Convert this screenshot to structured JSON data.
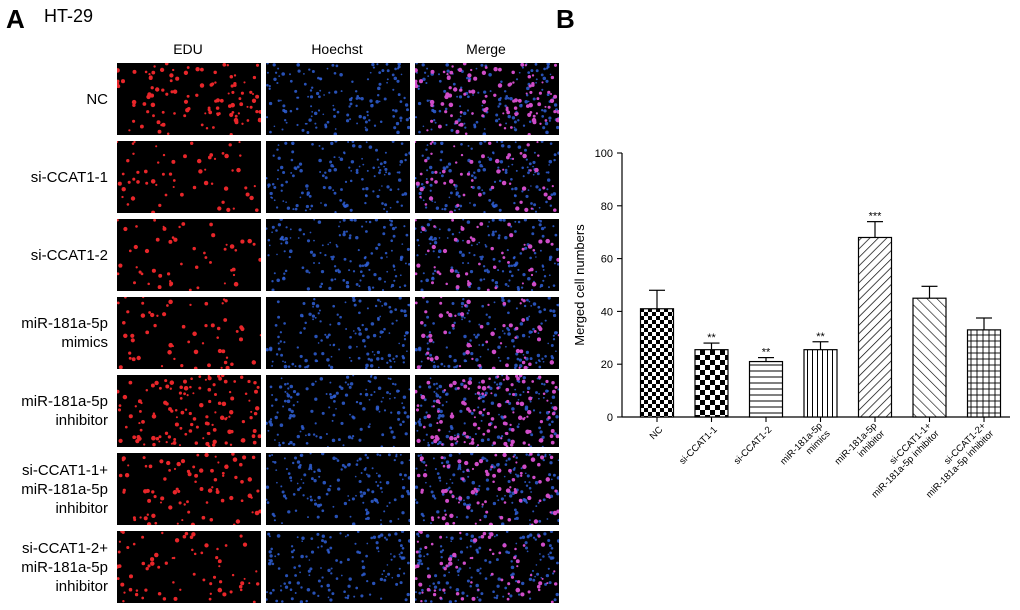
{
  "panel_a": {
    "letter": "A",
    "cell_line": "HT-29",
    "columns": [
      "EDU",
      "Hoechst",
      "Merge"
    ],
    "rows": [
      {
        "lines": [
          "NC"
        ],
        "edu_density": 0.8
      },
      {
        "lines": [
          "si-CCAT1-1"
        ],
        "edu_density": 0.35
      },
      {
        "lines": [
          "si-CCAT1-2"
        ],
        "edu_density": 0.3
      },
      {
        "lines": [
          "miR-181a-5p",
          "mimics"
        ],
        "edu_density": 0.35
      },
      {
        "lines": [
          "miR-181a-5p",
          "inhibitor"
        ],
        "edu_density": 1.0
      },
      {
        "lines": [
          "si-CCAT1-1+",
          "miR-181a-5p",
          "inhibitor"
        ],
        "edu_density": 0.6
      },
      {
        "lines": [
          "si-CCAT1-2+",
          "miR-181a-5p",
          "inhibitor"
        ],
        "edu_density": 0.45
      }
    ],
    "colors": {
      "edu": "#e8262a",
      "hoechst": "#2f5fd6",
      "merge_overlap": "#d04cc8",
      "background": "#000000"
    }
  },
  "panel_b": {
    "letter": "B"
  },
  "chart_data": {
    "type": "bar",
    "categories": [
      [
        "NC"
      ],
      [
        "si-CCAT1-1"
      ],
      [
        "si-CCAT1-2"
      ],
      [
        "miR-181a-5p",
        "mimics"
      ],
      [
        "miR-181a-5p",
        "inhibitor"
      ],
      [
        "si-CCAT1-1+",
        "miR-181a-5p inhibitor"
      ],
      [
        "si-CCAT1-2+",
        "miR-181a-5p inhibitor"
      ]
    ],
    "values": [
      41,
      25.5,
      21,
      25.5,
      68,
      45,
      33
    ],
    "errors": [
      7,
      2.5,
      1.5,
      3,
      6,
      4.5,
      4.5
    ],
    "significance": [
      "",
      "**",
      "**",
      "**",
      "***",
      "",
      ""
    ],
    "patterns": [
      "checker",
      "checker-coarse",
      "hlines",
      "vlines",
      "diag-right",
      "diag-left",
      "grid"
    ],
    "ylabel": "Merged cell numbers",
    "xlabel": "",
    "title": "",
    "ylim": [
      0,
      100
    ],
    "yticks": [
      0,
      20,
      40,
      60,
      80,
      100
    ],
    "grid": false
  }
}
